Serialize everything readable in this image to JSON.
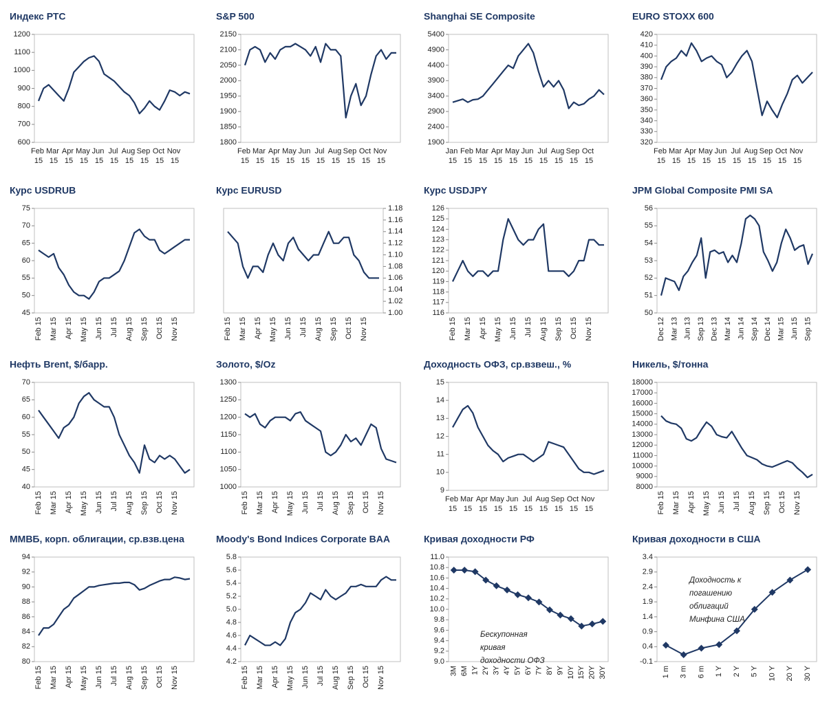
{
  "chart_data": [
    {
      "type": "line",
      "title": "Индекс РТС",
      "color": "#1f3864",
      "ylim": [
        600,
        1200
      ],
      "yticks": [
        600,
        700,
        800,
        900,
        1000,
        1100,
        1200
      ],
      "categories": [
        "Feb 15",
        null,
        null,
        "Mar 15",
        null,
        null,
        "Apr 15",
        null,
        null,
        "May 15",
        null,
        null,
        "Jun 15",
        null,
        null,
        "Jul 15",
        null,
        null,
        "Aug 15",
        null,
        null,
        "Sep 15",
        null,
        null,
        "Oct 15",
        null,
        null,
        "Nov 15",
        null,
        null,
        null
      ],
      "values": [
        830,
        900,
        920,
        890,
        860,
        830,
        900,
        990,
        1020,
        1050,
        1070,
        1080,
        1050,
        980,
        960,
        940,
        910,
        880,
        860,
        820,
        760,
        790,
        830,
        800,
        780,
        830,
        890,
        880,
        860,
        880,
        870
      ]
    },
    {
      "type": "line",
      "title": "S&P 500",
      "color": "#1f3864",
      "ylim": [
        1800,
        2150
      ],
      "yticks": [
        1800,
        1850,
        1900,
        1950,
        2000,
        2050,
        2100,
        2150
      ],
      "categories": [
        "Feb 15",
        null,
        null,
        "Mar 15",
        null,
        null,
        "Apr 15",
        null,
        null,
        "May 15",
        null,
        null,
        "Jun 15",
        null,
        null,
        "Jul 15",
        null,
        null,
        "Aug 15",
        null,
        null,
        "Sep 15",
        null,
        null,
        "Oct 15",
        null,
        null,
        "Nov 15",
        null,
        null,
        null
      ],
      "values": [
        2050,
        2100,
        2110,
        2100,
        2060,
        2090,
        2070,
        2100,
        2110,
        2110,
        2120,
        2110,
        2100,
        2080,
        2110,
        2060,
        2120,
        2100,
        2100,
        2080,
        1880,
        1950,
        1990,
        1920,
        1950,
        2020,
        2080,
        2100,
        2070,
        2090,
        2090
      ]
    },
    {
      "type": "line",
      "title": "Shanghai SE Composite",
      "color": "#1f3864",
      "ylim": [
        1900,
        5400
      ],
      "yticks": [
        1900,
        2400,
        2900,
        3400,
        3900,
        4400,
        4900,
        5400
      ],
      "categories": [
        "Jan 15",
        null,
        null,
        "Feb 15",
        null,
        null,
        "Mar 15",
        null,
        null,
        "Apr 15",
        null,
        null,
        "May 15",
        null,
        null,
        "Jun 15",
        null,
        null,
        "Jul 15",
        null,
        null,
        "Aug 15",
        null,
        null,
        "Sep 15",
        null,
        null,
        "Oct 15",
        null,
        null,
        null
      ],
      "values": [
        3200,
        3250,
        3300,
        3200,
        3280,
        3300,
        3400,
        3600,
        3800,
        4000,
        4200,
        4400,
        4300,
        4700,
        4900,
        5100,
        4800,
        4200,
        3700,
        3900,
        3700,
        3900,
        3600,
        3000,
        3200,
        3100,
        3150,
        3300,
        3400,
        3600,
        3450
      ]
    },
    {
      "type": "line",
      "title": "EURO STOXX 600",
      "color": "#1f3864",
      "ylim": [
        320,
        420
      ],
      "yticks": [
        320,
        330,
        340,
        350,
        360,
        370,
        380,
        390,
        400,
        410,
        420
      ],
      "categories": [
        "Feb 15",
        null,
        null,
        "Mar 15",
        null,
        null,
        "Apr 15",
        null,
        null,
        "May 15",
        null,
        null,
        "Jun 15",
        null,
        null,
        "Jul 15",
        null,
        null,
        "Aug 15",
        null,
        null,
        "Sep 15",
        null,
        null,
        "Oct 15",
        null,
        null,
        "Nov 15",
        null,
        null,
        null
      ],
      "values": [
        378,
        390,
        395,
        398,
        405,
        400,
        412,
        405,
        395,
        398,
        400,
        395,
        392,
        380,
        385,
        393,
        400,
        405,
        395,
        370,
        345,
        358,
        350,
        343,
        355,
        365,
        378,
        382,
        375,
        380,
        385
      ]
    },
    {
      "type": "line",
      "title": "Курс USDRUB",
      "color": "#1f3864",
      "ylim": [
        45,
        75
      ],
      "yticks": [
        45,
        50,
        55,
        60,
        65,
        70,
        75
      ],
      "categories": [
        "Feb 15",
        null,
        null,
        "Mar 15",
        null,
        null,
        "Apr 15",
        null,
        null,
        "May 15",
        null,
        null,
        "Jun 15",
        null,
        null,
        "Jul 15",
        null,
        null,
        "Aug 15",
        null,
        null,
        "Sep 15",
        null,
        null,
        "Oct 15",
        null,
        null,
        "Nov 15",
        null,
        null,
        null
      ],
      "values": [
        63,
        62,
        61,
        62,
        58,
        56,
        53,
        51,
        50,
        50,
        49,
        51,
        54,
        55,
        55,
        56,
        57,
        60,
        64,
        68,
        69,
        67,
        66,
        66,
        63,
        62,
        63,
        64,
        65,
        66,
        66
      ]
    },
    {
      "type": "line",
      "title": "Курс EURUSD",
      "color": "#1f3864",
      "y_axis_side": "right",
      "ylim": [
        1.0,
        1.18
      ],
      "yticks": [
        {
          "value": 1.0,
          "label": "1.00"
        },
        1.02,
        1.04,
        1.06,
        1.08,
        {
          "value": 1.1,
          "label": "1.10"
        },
        1.12,
        1.14,
        1.16,
        1.18
      ],
      "categories": [
        "Feb 15",
        null,
        null,
        "Mar 15",
        null,
        null,
        "Apr 15",
        null,
        null,
        "May 15",
        null,
        null,
        "Jun 15",
        null,
        null,
        "Jul 15",
        null,
        null,
        "Aug 15",
        null,
        null,
        "Sep 15",
        null,
        null,
        "Oct 15",
        null,
        null,
        "Nov 15",
        null,
        null,
        null
      ],
      "values": [
        1.14,
        1.13,
        1.12,
        1.08,
        1.06,
        1.08,
        1.08,
        1.07,
        1.1,
        1.12,
        1.1,
        1.09,
        1.12,
        1.13,
        1.11,
        1.1,
        1.09,
        1.1,
        1.1,
        1.12,
        1.14,
        1.12,
        1.12,
        1.13,
        1.13,
        1.1,
        1.09,
        1.07,
        1.06,
        1.06,
        1.06
      ]
    },
    {
      "type": "line",
      "title": "Курс USDJPY",
      "color": "#1f3864",
      "ylim": [
        116,
        126
      ],
      "yticks": [
        116,
        117,
        118,
        119,
        120,
        121,
        122,
        123,
        124,
        125,
        126
      ],
      "categories": [
        "Feb 15",
        null,
        null,
        "Mar 15",
        null,
        null,
        "Apr 15",
        null,
        null,
        "May 15",
        null,
        null,
        "Jun 15",
        null,
        null,
        "Jul 15",
        null,
        null,
        "Aug 15",
        null,
        null,
        "Sep 15",
        null,
        null,
        "Oct 15",
        null,
        null,
        "Nov 15",
        null,
        null,
        null
      ],
      "values": [
        119,
        120,
        121,
        120,
        119.5,
        120,
        120,
        119.5,
        120,
        120,
        123,
        125,
        124,
        123,
        122.5,
        123,
        123,
        124,
        124.5,
        120,
        120,
        120,
        120,
        119.5,
        120,
        121,
        121,
        123,
        123,
        122.5,
        122.5
      ]
    },
    {
      "type": "line",
      "title": "JPM Global Composite PMI SA",
      "color": "#1f3864",
      "ylim": [
        50,
        56
      ],
      "yticks": [
        50,
        51,
        52,
        53,
        54,
        55,
        56
      ],
      "categories": [
        "Dec 12",
        null,
        null,
        "Mar 13",
        null,
        null,
        "Jun 13",
        null,
        null,
        "Sep 13",
        null,
        null,
        "Dec 13",
        null,
        null,
        "Mar 14",
        null,
        null,
        "Jun 14",
        null,
        null,
        "Sep 14",
        null,
        null,
        "Dec 14",
        null,
        null,
        "Mar 15",
        null,
        null,
        "Jun 15",
        null,
        null,
        "Sep 15",
        null
      ],
      "values": [
        51,
        52,
        51.9,
        51.8,
        51.3,
        52.1,
        52.4,
        52.9,
        53.3,
        54.3,
        52.0,
        53.5,
        53.6,
        53.4,
        53.5,
        52.9,
        53.3,
        52.9,
        54.0,
        55.4,
        55.6,
        55.4,
        55.0,
        53.5,
        53.0,
        52.4,
        52.9,
        54.0,
        54.8,
        54.3,
        53.6,
        53.8,
        53.9,
        52.8,
        53.4
      ]
    },
    {
      "type": "line",
      "title": "Нефть Brent, $/барр.",
      "color": "#1f3864",
      "ylim": [
        40,
        70
      ],
      "yticks": [
        40,
        45,
        50,
        55,
        60,
        65,
        70
      ],
      "categories": [
        "Feb 15",
        null,
        null,
        "Mar 15",
        null,
        null,
        "Apr 15",
        null,
        null,
        "May 15",
        null,
        null,
        "Jun 15",
        null,
        null,
        "Jul 15",
        null,
        null,
        "Aug 15",
        null,
        null,
        "Sep 15",
        null,
        null,
        "Oct 15",
        null,
        null,
        "Nov 15",
        null,
        null,
        null
      ],
      "values": [
        62,
        60,
        58,
        56,
        54,
        57,
        58,
        60,
        64,
        66,
        67,
        65,
        64,
        63,
        63,
        60,
        55,
        52,
        49,
        47,
        44,
        52,
        48,
        47,
        49,
        48,
        49,
        48,
        46,
        44,
        45
      ]
    },
    {
      "type": "line",
      "title": "Золото, $/Oz",
      "color": "#1f3864",
      "ylim": [
        1000,
        1300
      ],
      "yticks": [
        1000,
        1050,
        1100,
        1150,
        1200,
        1250,
        1300
      ],
      "categories": [
        "Feb 15",
        null,
        null,
        "Mar 15",
        null,
        null,
        "Apr 15",
        null,
        null,
        "May 15",
        null,
        null,
        "Jun 15",
        null,
        null,
        "Jul 15",
        null,
        null,
        "Aug 15",
        null,
        null,
        "Sep 15",
        null,
        null,
        "Oct 15",
        null,
        null,
        "Nov 15",
        null,
        null,
        null
      ],
      "values": [
        1210,
        1200,
        1210,
        1180,
        1170,
        1190,
        1200,
        1200,
        1200,
        1190,
        1210,
        1215,
        1190,
        1180,
        1170,
        1160,
        1100,
        1090,
        1100,
        1120,
        1150,
        1130,
        1140,
        1120,
        1150,
        1180,
        1170,
        1110,
        1080,
        1075,
        1070
      ]
    },
    {
      "type": "line",
      "title": "Доходность ОФЗ, ср.взвеш., %",
      "color": "#1f3864",
      "ylim": [
        9,
        15
      ],
      "yticks": [
        9,
        10,
        11,
        12,
        13,
        14,
        15
      ],
      "categories": [
        "Feb 15",
        null,
        null,
        "Mar 15",
        null,
        null,
        "Apr 15",
        null,
        null,
        "May 15",
        null,
        null,
        "Jun 15",
        null,
        null,
        "Jul 15",
        null,
        null,
        "Aug 15",
        null,
        null,
        "Sep 15",
        null,
        null,
        "Oct 15",
        null,
        null,
        "Nov 15",
        null,
        null,
        null
      ],
      "values": [
        12.5,
        13,
        13.5,
        13.7,
        13.3,
        12.5,
        12.0,
        11.5,
        11.2,
        11.0,
        10.6,
        10.8,
        10.9,
        11.0,
        11.0,
        10.8,
        10.6,
        10.8,
        11.0,
        11.7,
        11.6,
        11.5,
        11.4,
        11.0,
        10.6,
        10.2,
        10.0,
        10.0,
        9.9,
        10.0,
        10.1
      ]
    },
    {
      "type": "line",
      "title": "Никель, $/тонна",
      "color": "#1f3864",
      "ylim": [
        8000,
        18000
      ],
      "yticks": [
        8000,
        9000,
        10000,
        11000,
        12000,
        13000,
        14000,
        15000,
        16000,
        17000,
        18000
      ],
      "categories": [
        "Feb 15",
        null,
        null,
        "Mar 15",
        null,
        null,
        "Apr 15",
        null,
        null,
        "May 15",
        null,
        null,
        "Jun 15",
        null,
        null,
        "Jul 15",
        null,
        null,
        "Aug 15",
        null,
        null,
        "Sep 15",
        null,
        null,
        "Oct 15",
        null,
        null,
        "Nov 15",
        null,
        null,
        null
      ],
      "values": [
        14800,
        14300,
        14100,
        14000,
        13600,
        12600,
        12400,
        12700,
        13500,
        14200,
        13800,
        13000,
        12800,
        12700,
        13300,
        12500,
        11700,
        11000,
        10800,
        10600,
        10200,
        10000,
        9900,
        10100,
        10300,
        10500,
        10300,
        9800,
        9400,
        8900,
        9200
      ]
    },
    {
      "type": "line",
      "title": "ММВБ, корп. облигации, ср.взв.цена",
      "color": "#1f3864",
      "ylim": [
        80,
        94
      ],
      "yticks": [
        80,
        82,
        84,
        86,
        88,
        90,
        92,
        94
      ],
      "categories": [
        "Feb 15",
        null,
        null,
        "Mar 15",
        null,
        null,
        "Apr 15",
        null,
        null,
        "May 15",
        null,
        null,
        "Jun 15",
        null,
        null,
        "Jul 15",
        null,
        null,
        "Aug 15",
        null,
        null,
        "Sep 15",
        null,
        null,
        "Oct 15",
        null,
        null,
        "Nov 15",
        null,
        null,
        null
      ],
      "values": [
        83.5,
        84.5,
        84.5,
        85,
        86,
        87,
        87.5,
        88.5,
        89,
        89.5,
        90,
        90,
        90.2,
        90.3,
        90.4,
        90.5,
        90.5,
        90.6,
        90.6,
        90.3,
        89.6,
        89.8,
        90.2,
        90.5,
        90.8,
        91,
        91,
        91.3,
        91.2,
        91,
        91.1
      ]
    },
    {
      "type": "line",
      "title": "Moody's Bond Indices Corporate BAA",
      "color": "#1f3864",
      "ylim": [
        4.2,
        5.8
      ],
      "yticks": [
        4.2,
        4.4,
        4.6,
        4.8,
        {
          "value": 5.0,
          "label": "5.0"
        },
        5.2,
        5.4,
        5.6,
        5.8
      ],
      "categories": [
        "Feb 15",
        null,
        null,
        "Mar 15",
        null,
        null,
        "Apr 15",
        null,
        null,
        "May 15",
        null,
        null,
        "Jun 15",
        null,
        null,
        "Jul 15",
        null,
        null,
        "Aug 15",
        null,
        null,
        "Sep 15",
        null,
        null,
        "Oct 15",
        null,
        null,
        "Nov 15",
        null,
        null,
        null
      ],
      "values": [
        4.45,
        4.6,
        4.55,
        4.5,
        4.45,
        4.45,
        4.5,
        4.45,
        4.55,
        4.8,
        4.95,
        5.0,
        5.1,
        5.25,
        5.2,
        5.15,
        5.3,
        5.2,
        5.15,
        5.2,
        5.25,
        5.35,
        5.35,
        5.38,
        5.35,
        5.35,
        5.35,
        5.45,
        5.5,
        5.45,
        5.45
      ]
    },
    {
      "type": "line",
      "title": "Кривая доходности РФ",
      "color": "#1f3864",
      "marker": "diamond",
      "ylim": [
        9.0,
        11.0
      ],
      "yticks": [
        {
          "value": 9.0,
          "label": "9.0"
        },
        9.2,
        9.4,
        9.6,
        9.8,
        {
          "value": 10.0,
          "label": "10.0"
        },
        10.2,
        10.4,
        10.6,
        10.8,
        {
          "value": 11.0,
          "label": "11.0"
        }
      ],
      "categories": [
        "3M",
        "6M",
        "1Y",
        "2Y",
        "3Y",
        "4Y",
        "5Y",
        "6Y",
        "7Y",
        "8Y",
        "9Y",
        "10Y",
        "15Y",
        "20Y",
        "30Y"
      ],
      "values": [
        10.75,
        10.75,
        10.72,
        10.56,
        10.45,
        10.37,
        10.28,
        10.22,
        10.14,
        9.99,
        9.89,
        9.82,
        9.68,
        9.72,
        9.77
      ],
      "annotation": [
        "Бескупонная",
        "кривая",
        "доходности ОФЗ"
      ]
    },
    {
      "type": "line",
      "title": "Кривая доходности в США",
      "color": "#1f3864",
      "marker": "diamond",
      "ylim": [
        -0.1,
        3.4
      ],
      "yticks": [
        -0.1,
        0.4,
        0.9,
        1.4,
        1.9,
        2.4,
        2.9,
        3.4
      ],
      "categories": [
        "1 m",
        "3 m",
        "6 m",
        "1 Y",
        "2 Y",
        "5 Y",
        "10 Y",
        "20 Y",
        "30 Y"
      ],
      "values": [
        0.45,
        0.13,
        0.35,
        0.47,
        0.93,
        1.65,
        2.22,
        2.63,
        2.98
      ],
      "annotation": [
        "Доходность к",
        "погашению",
        "облигаций",
        "Минфина США"
      ]
    }
  ]
}
